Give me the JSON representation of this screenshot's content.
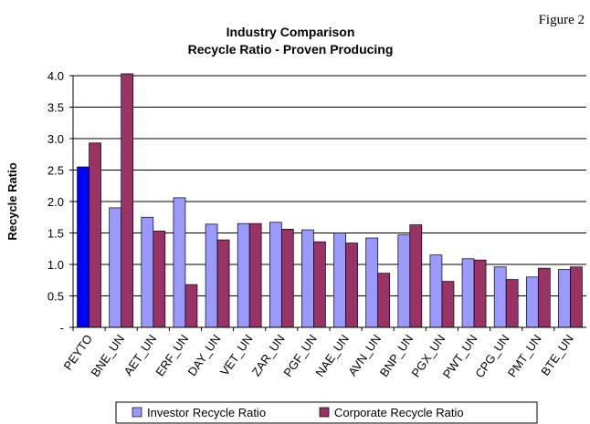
{
  "chart_data": {
    "type": "bar",
    "figure_label": "Figure 2",
    "title": [
      "Industry Comparison",
      "Recycle Ratio - Proven Producing"
    ],
    "y_label": "Recycle Ratio",
    "categories": [
      "PEYTO",
      "BNE_UN",
      "AET_UN",
      "ERF_UN",
      "DAY_UN",
      "VET_UN",
      "ZAR_UN",
      "PGF_UN",
      "NAE_UN",
      "AVN_UN",
      "BNP_UN",
      "PGX_UN",
      "PWT_UN",
      "CPG_UN",
      "PMT_UN",
      "BTE_UN"
    ],
    "series": [
      {
        "name": "Investor Recycle Ratio",
        "color": "#9999ff",
        "colors": [
          "#0000ff",
          "#9999ff",
          "#9999ff",
          "#9999ff",
          "#9999ff",
          "#9999ff",
          "#9999ff",
          "#9999ff",
          "#9999ff",
          "#9999ff",
          "#9999ff",
          "#9999ff",
          "#9999ff",
          "#9999ff",
          "#9999ff",
          "#9999ff"
        ],
        "values": [
          2.55,
          1.9,
          1.75,
          2.06,
          1.64,
          1.65,
          1.67,
          1.55,
          1.5,
          1.42,
          1.47,
          1.15,
          1.09,
          0.96,
          0.8,
          0.92
        ]
      },
      {
        "name": "Corporate Recycle Ratio",
        "color": "#993366",
        "values": [
          2.93,
          4.03,
          1.53,
          0.68,
          1.39,
          1.65,
          1.56,
          1.36,
          1.34,
          0.86,
          1.63,
          0.73,
          1.07,
          0.76,
          0.94,
          0.96
        ]
      }
    ],
    "ylim": [
      0,
      4.0
    ],
    "yticks": [
      {
        "value": 0,
        "label": "-"
      },
      0.5,
      {
        "value": 1.0,
        "label": "1.0"
      },
      1.5,
      {
        "value": 2.0,
        "label": "2.0"
      },
      2.5,
      {
        "value": 3.0,
        "label": "3.0"
      },
      3.5,
      {
        "value": 4.0,
        "label": "4.0"
      }
    ],
    "grid": true,
    "legend": "bottom"
  }
}
